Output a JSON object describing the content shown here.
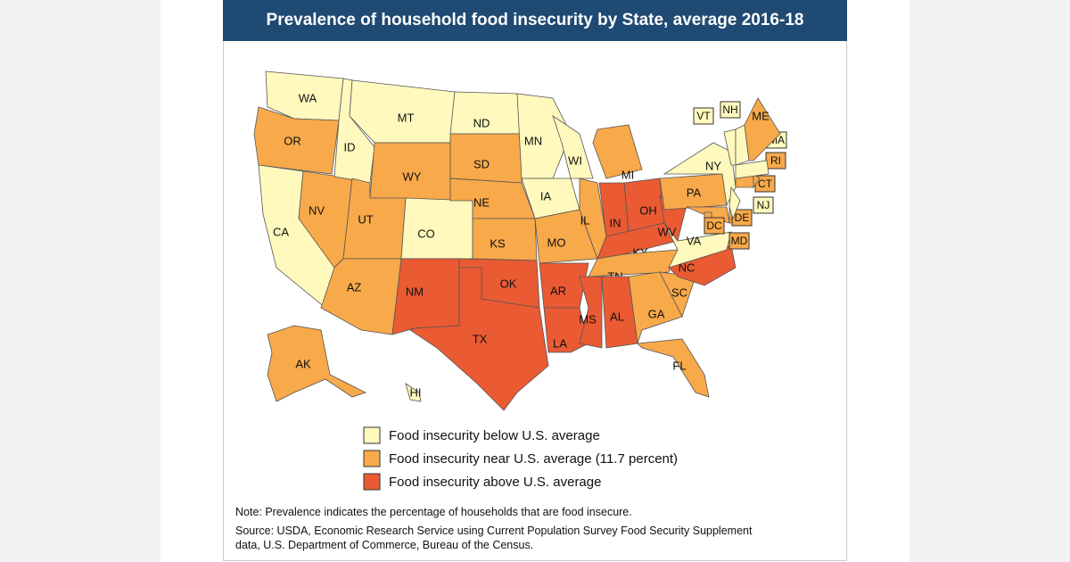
{
  "title": "Prevalence of household food insecurity by State, average 2016-18",
  "legend": [
    {
      "label": "Food insecurity below U.S. average",
      "color": "#fff9bd"
    },
    {
      "label": "Food insecurity near U.S. average (11.7 percent)",
      "color": "#f8a94a"
    },
    {
      "label": "Food insecurity above U.S. average",
      "color": "#ea5a33"
    }
  ],
  "states": [
    {
      "abbr": "WA",
      "category": 0
    },
    {
      "abbr": "OR",
      "category": 1
    },
    {
      "abbr": "CA",
      "category": 0
    },
    {
      "abbr": "NV",
      "category": 1
    },
    {
      "abbr": "ID",
      "category": 0
    },
    {
      "abbr": "MT",
      "category": 0
    },
    {
      "abbr": "WY",
      "category": 1
    },
    {
      "abbr": "UT",
      "category": 1
    },
    {
      "abbr": "AZ",
      "category": 1
    },
    {
      "abbr": "CO",
      "category": 0
    },
    {
      "abbr": "NM",
      "category": 2
    },
    {
      "abbr": "ND",
      "category": 0
    },
    {
      "abbr": "SD",
      "category": 1
    },
    {
      "abbr": "NE",
      "category": 1
    },
    {
      "abbr": "KS",
      "category": 1
    },
    {
      "abbr": "OK",
      "category": 2
    },
    {
      "abbr": "TX",
      "category": 2
    },
    {
      "abbr": "MN",
      "category": 0
    },
    {
      "abbr": "IA",
      "category": 0
    },
    {
      "abbr": "MO",
      "category": 1
    },
    {
      "abbr": "AR",
      "category": 2
    },
    {
      "abbr": "LA",
      "category": 2
    },
    {
      "abbr": "WI",
      "category": 0
    },
    {
      "abbr": "IL",
      "category": 1
    },
    {
      "abbr": "MI",
      "category": 1
    },
    {
      "abbr": "IN",
      "category": 2
    },
    {
      "abbr": "OH",
      "category": 2
    },
    {
      "abbr": "KY",
      "category": 2
    },
    {
      "abbr": "TN",
      "category": 1
    },
    {
      "abbr": "MS",
      "category": 2
    },
    {
      "abbr": "AL",
      "category": 2
    },
    {
      "abbr": "GA",
      "category": 1
    },
    {
      "abbr": "FL",
      "category": 1
    },
    {
      "abbr": "SC",
      "category": 1
    },
    {
      "abbr": "NC",
      "category": 2
    },
    {
      "abbr": "VA",
      "category": 0
    },
    {
      "abbr": "WV",
      "category": 2
    },
    {
      "abbr": "PA",
      "category": 1
    },
    {
      "abbr": "NY",
      "category": 0
    },
    {
      "abbr": "MD",
      "category": 1
    },
    {
      "abbr": "DE",
      "category": 1
    },
    {
      "abbr": "NJ",
      "category": 0
    },
    {
      "abbr": "CT",
      "category": 1
    },
    {
      "abbr": "RI",
      "category": 1
    },
    {
      "abbr": "MA",
      "category": 0
    },
    {
      "abbr": "VT",
      "category": 0
    },
    {
      "abbr": "NH",
      "category": 0
    },
    {
      "abbr": "ME",
      "category": 1
    },
    {
      "abbr": "AK",
      "category": 1
    },
    {
      "abbr": "HI",
      "category": 0
    },
    {
      "abbr": "DC",
      "category": 1
    }
  ],
  "note": "Note: Prevalence indicates the percentage of households that are food insecure.",
  "source": "Source: USDA, Economic Research Service using Current Population Survey Food Security Supplement data, U.S. Department of Commerce, Bureau of the Census."
}
